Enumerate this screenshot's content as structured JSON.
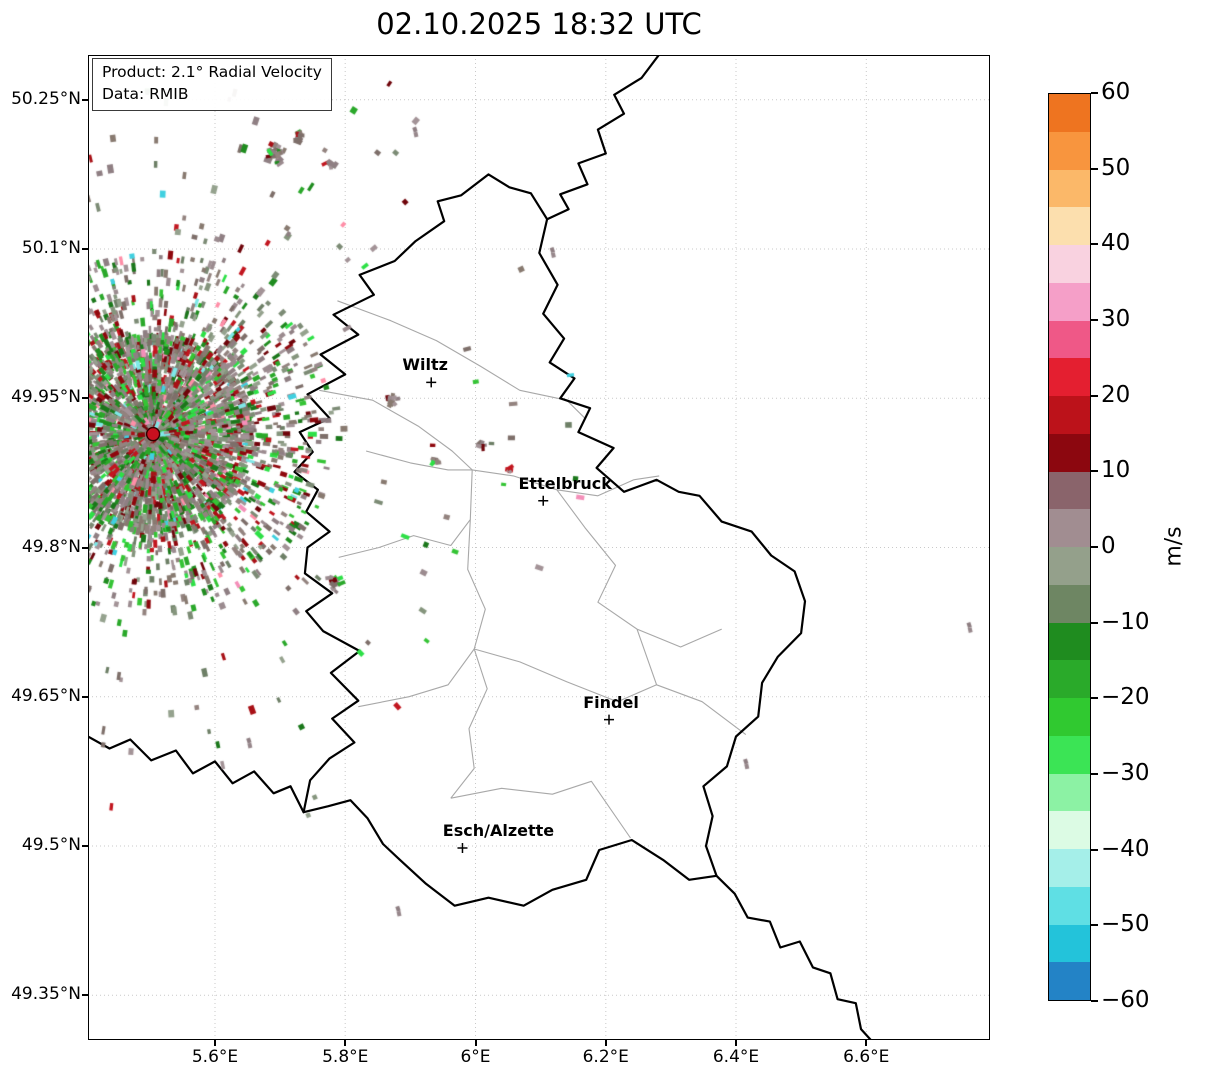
{
  "title": "02.10.2025 18:32 UTC",
  "info_box": {
    "product": "Product: 2.1° Radial Velocity",
    "source": "Data: RMIB"
  },
  "axes": {
    "lon_range": [
      5.405,
      6.79
    ],
    "lat_range": [
      49.305,
      50.295
    ],
    "lat_ticks": [
      {
        "label": "50.25°N",
        "value": 50.25
      },
      {
        "label": "50.1°N",
        "value": 50.1
      },
      {
        "label": "49.95°N",
        "value": 49.95
      },
      {
        "label": "49.8°N",
        "value": 49.8
      },
      {
        "label": "49.65°N",
        "value": 49.65
      },
      {
        "label": "49.5°N",
        "value": 49.5
      },
      {
        "label": "49.35°N",
        "value": 49.35
      }
    ],
    "lon_ticks": [
      {
        "label": "5.6°E",
        "value": 5.6
      },
      {
        "label": "5.8°E",
        "value": 5.8
      },
      {
        "label": "6°E",
        "value": 6.0
      },
      {
        "label": "6.2°E",
        "value": 6.2
      },
      {
        "label": "6.4°E",
        "value": 6.4
      },
      {
        "label": "6.6°E",
        "value": 6.6
      }
    ]
  },
  "colorbar": {
    "unit": "m/s",
    "min": -60,
    "max": 60,
    "tick_values": [
      60,
      50,
      40,
      30,
      20,
      10,
      0,
      -10,
      -20,
      -30,
      -40,
      -50,
      -60
    ],
    "tick_labels": [
      "60",
      "50",
      "40",
      "30",
      "20",
      "10",
      "0",
      "−10",
      "−20",
      "−30",
      "−40",
      "−50",
      "−60"
    ],
    "band_colors_top_to_bottom": [
      "#ee7420",
      "#f8953e",
      "#fbb869",
      "#fcdfae",
      "#f9d2e0",
      "#f59fc8",
      "#ef5887",
      "#e41f30",
      "#bc121a",
      "#8c070f",
      "#8a646b",
      "#a18d91",
      "#94a08b",
      "#6e8663",
      "#1f8c1f",
      "#2aaa2a",
      "#30c930",
      "#3be455",
      "#8cf2a4",
      "#dcfbe4",
      "#a5efe9",
      "#5fdfe4",
      "#23c3da",
      "#2383c6"
    ]
  },
  "chart_data": {
    "type": "heatmap",
    "timestamp": "02.10.2025 18:32 UTC",
    "product": "2.1° Radial Velocity",
    "source": "RMIB",
    "unit": "m/s",
    "value_range": [
      -60,
      60
    ],
    "radar_site": {
      "lon": 5.505,
      "lat": 49.914
    },
    "cities": [
      {
        "name": "Wiltz",
        "lon": 5.932,
        "lat": 49.966,
        "label_dx": -6
      },
      {
        "name": "Ettelbruck",
        "lon": 6.104,
        "lat": 49.847,
        "label_dx": 22
      },
      {
        "name": "Findel",
        "lon": 6.205,
        "lat": 49.627,
        "label_dx": 2
      },
      {
        "name": "Esch/Alzette",
        "lon": 5.98,
        "lat": 49.498,
        "label_dx": 36
      }
    ],
    "borders": {
      "luxembourg": [
        [
          6.02,
          50.175
        ],
        [
          6.052,
          50.162
        ],
        [
          6.085,
          50.156
        ],
        [
          6.11,
          50.13
        ],
        [
          6.098,
          50.096
        ],
        [
          6.126,
          50.064
        ],
        [
          6.104,
          50.035
        ],
        [
          6.136,
          50.01
        ],
        [
          6.114,
          49.986
        ],
        [
          6.152,
          49.97
        ],
        [
          6.13,
          49.95
        ],
        [
          6.176,
          49.94
        ],
        [
          6.158,
          49.916
        ],
        [
          6.212,
          49.9
        ],
        [
          6.186,
          49.88
        ],
        [
          6.228,
          49.856
        ],
        [
          6.278,
          49.868
        ],
        [
          6.312,
          49.856
        ],
        [
          6.344,
          49.852
        ],
        [
          6.378,
          49.826
        ],
        [
          6.424,
          49.816
        ],
        [
          6.454,
          49.792
        ],
        [
          6.49,
          49.776
        ],
        [
          6.506,
          49.746
        ],
        [
          6.5,
          49.714
        ],
        [
          6.464,
          49.69
        ],
        [
          6.44,
          49.664
        ],
        [
          6.434,
          49.63
        ],
        [
          6.4,
          49.61
        ],
        [
          6.386,
          49.58
        ],
        [
          6.35,
          49.56
        ],
        [
          6.364,
          49.53
        ],
        [
          6.354,
          49.5
        ],
        [
          6.37,
          49.47
        ],
        [
          6.328,
          49.466
        ],
        [
          6.288,
          49.486
        ],
        [
          6.24,
          49.506
        ],
        [
          6.19,
          49.496
        ],
        [
          6.17,
          49.466
        ],
        [
          6.118,
          49.456
        ],
        [
          6.074,
          49.44
        ],
        [
          6.02,
          49.448
        ],
        [
          5.968,
          49.44
        ],
        [
          5.924,
          49.462
        ],
        [
          5.884,
          49.486
        ],
        [
          5.858,
          49.502
        ],
        [
          5.834,
          49.528
        ],
        [
          5.808,
          49.546
        ],
        [
          5.774,
          49.54
        ],
        [
          5.736,
          49.534
        ],
        [
          5.746,
          49.566
        ],
        [
          5.776,
          49.588
        ],
        [
          5.814,
          49.604
        ],
        [
          5.78,
          49.628
        ],
        [
          5.82,
          49.646
        ],
        [
          5.778,
          49.674
        ],
        [
          5.822,
          49.696
        ],
        [
          5.766,
          49.716
        ],
        [
          5.74,
          49.736
        ],
        [
          5.78,
          49.754
        ],
        [
          5.738,
          49.774
        ],
        [
          5.742,
          49.8
        ],
        [
          5.776,
          49.816
        ],
        [
          5.74,
          49.836
        ],
        [
          5.758,
          49.858
        ],
        [
          5.722,
          49.876
        ],
        [
          5.75,
          49.896
        ],
        [
          5.73,
          49.916
        ],
        [
          5.776,
          49.93
        ],
        [
          5.742,
          49.954
        ],
        [
          5.8,
          49.974
        ],
        [
          5.762,
          49.994
        ],
        [
          5.82,
          50.014
        ],
        [
          5.782,
          50.034
        ],
        [
          5.844,
          50.054
        ],
        [
          5.822,
          50.074
        ],
        [
          5.876,
          50.088
        ],
        [
          5.908,
          50.108
        ],
        [
          5.952,
          50.128
        ],
        [
          5.942,
          50.148
        ],
        [
          5.978,
          50.154
        ]
      ],
      "belgium_germany": [
        [
          6.285,
          50.298
        ],
        [
          6.255,
          50.272
        ],
        [
          6.213,
          50.255
        ],
        [
          6.228,
          50.236
        ],
        [
          6.188,
          50.22
        ],
        [
          6.2,
          50.196
        ],
        [
          6.158,
          50.186
        ],
        [
          6.172,
          50.165
        ],
        [
          6.13,
          50.155
        ],
        [
          6.143,
          50.14
        ],
        [
          6.11,
          50.13
        ]
      ],
      "france_belgium": [
        [
          5.4,
          49.612
        ],
        [
          5.438,
          49.598
        ],
        [
          5.47,
          49.607
        ],
        [
          5.502,
          49.586
        ],
        [
          5.54,
          49.596
        ],
        [
          5.566,
          49.573
        ],
        [
          5.6,
          49.585
        ],
        [
          5.627,
          49.563
        ],
        [
          5.66,
          49.575
        ],
        [
          5.69,
          49.553
        ],
        [
          5.716,
          49.56
        ],
        [
          5.736,
          49.534
        ]
      ],
      "france_germany": [
        [
          6.37,
          49.47
        ],
        [
          6.398,
          49.452
        ],
        [
          6.418,
          49.428
        ],
        [
          6.452,
          49.424
        ],
        [
          6.468,
          49.398
        ],
        [
          6.498,
          49.404
        ],
        [
          6.518,
          49.378
        ],
        [
          6.545,
          49.372
        ],
        [
          6.556,
          49.346
        ],
        [
          6.584,
          49.342
        ],
        [
          6.592,
          49.316
        ],
        [
          6.614,
          49.3
        ]
      ]
    },
    "districts": [
      [
        [
          5.788,
          50.048
        ],
        [
          5.87,
          50.028
        ],
        [
          5.94,
          50.008
        ],
        [
          6.008,
          49.982
        ],
        [
          6.068,
          49.958
        ],
        [
          6.14,
          49.948
        ],
        [
          6.168,
          49.93
        ]
      ],
      [
        [
          5.76,
          49.958
        ],
        [
          5.842,
          49.948
        ],
        [
          5.912,
          49.922
        ],
        [
          5.964,
          49.897
        ],
        [
          5.995,
          49.878
        ]
      ],
      [
        [
          5.832,
          49.897
        ],
        [
          5.9,
          49.885
        ],
        [
          5.958,
          49.878
        ],
        [
          5.995,
          49.878
        ],
        [
          6.058,
          49.872
        ],
        [
          6.125,
          49.858
        ],
        [
          6.188,
          49.852
        ],
        [
          6.243,
          49.868
        ],
        [
          6.282,
          49.872
        ]
      ],
      [
        [
          5.79,
          49.79
        ],
        [
          5.852,
          49.8
        ],
        [
          5.905,
          49.812
        ],
        [
          5.962,
          49.802
        ],
        [
          5.992,
          49.828
        ],
        [
          5.995,
          49.878
        ]
      ],
      [
        [
          5.992,
          49.828
        ],
        [
          5.988,
          49.778
        ],
        [
          6.015,
          49.738
        ],
        [
          5.998,
          49.698
        ],
        [
          6.018,
          49.658
        ],
        [
          5.99,
          49.618
        ],
        [
          5.998,
          49.578
        ],
        [
          5.962,
          49.548
        ]
      ],
      [
        [
          6.125,
          49.858
        ],
        [
          6.168,
          49.82
        ],
        [
          6.215,
          49.782
        ],
        [
          6.188,
          49.745
        ],
        [
          6.248,
          49.718
        ],
        [
          6.315,
          49.7
        ],
        [
          6.378,
          49.718
        ]
      ],
      [
        [
          6.248,
          49.718
        ],
        [
          6.278,
          49.662
        ],
        [
          6.348,
          49.645
        ],
        [
          6.415,
          49.612
        ]
      ],
      [
        [
          5.998,
          49.698
        ],
        [
          6.068,
          49.685
        ],
        [
          6.14,
          49.665
        ],
        [
          6.218,
          49.645
        ],
        [
          6.278,
          49.662
        ]
      ],
      [
        [
          5.962,
          49.548
        ],
        [
          6.04,
          49.558
        ],
        [
          6.118,
          49.552
        ],
        [
          6.178,
          49.565
        ],
        [
          6.238,
          49.508
        ]
      ],
      [
        [
          5.82,
          49.64
        ],
        [
          5.898,
          49.65
        ],
        [
          5.958,
          49.662
        ],
        [
          5.998,
          49.698
        ]
      ]
    ],
    "speckles": {
      "seed": 20251002,
      "core_count": 3200,
      "ring_count": 1300,
      "far_count": 240,
      "color_groups": [
        {
          "p": 0.38,
          "colors": [
            "#9b8b8f",
            "#8f7f83",
            "#a39397",
            "#93837f",
            "#887a70",
            "#7e6f6a"
          ]
        },
        {
          "p": 0.2,
          "colors": [
            "#7c8b75",
            "#6d7f66",
            "#85957d",
            "#95a28e"
          ]
        },
        {
          "p": 0.24,
          "colors": [
            "#1f8c1f",
            "#2aa82a",
            "#35c435",
            "#2de046",
            "#1a771a"
          ]
        },
        {
          "p": 0.14,
          "colors": [
            "#6f040a",
            "#8f070d",
            "#a81016",
            "#c2161f"
          ]
        },
        {
          "p": 0.04,
          "colors": [
            "#f48fb9",
            "#7fe8e8",
            "#ff8fa8",
            "#40d0e0"
          ]
        }
      ],
      "clusters": [
        {
          "lon": 5.692,
          "lat": 50.195,
          "count": 24,
          "spread": 12
        },
        {
          "lon": 5.728,
          "lat": 50.212,
          "count": 10,
          "spread": 7
        },
        {
          "lon": 5.777,
          "lat": 50.184,
          "count": 8,
          "spread": 6
        },
        {
          "lon": 5.869,
          "lat": 49.948,
          "count": 10,
          "spread": 7
        },
        {
          "lon": 5.938,
          "lat": 49.888,
          "count": 6,
          "spread": 5
        },
        {
          "lon": 6.007,
          "lat": 49.903,
          "count": 5,
          "spread": 5
        },
        {
          "lon": 5.784,
          "lat": 49.762,
          "count": 12,
          "spread": 8
        },
        {
          "lon": 6.052,
          "lat": 49.878,
          "count": 4,
          "spread": 4
        }
      ],
      "isolated": [
        {
          "lon": 6.758,
          "lat": 49.722
        },
        {
          "lon": 6.415,
          "lat": 49.585
        },
        {
          "lon": 5.881,
          "lat": 49.437
        },
        {
          "lon": 5.907,
          "lat": 50.22
        },
        {
          "lon": 6.118,
          "lat": 50.099
        },
        {
          "lon": 5.652,
          "lat": 49.606
        }
      ]
    }
  }
}
